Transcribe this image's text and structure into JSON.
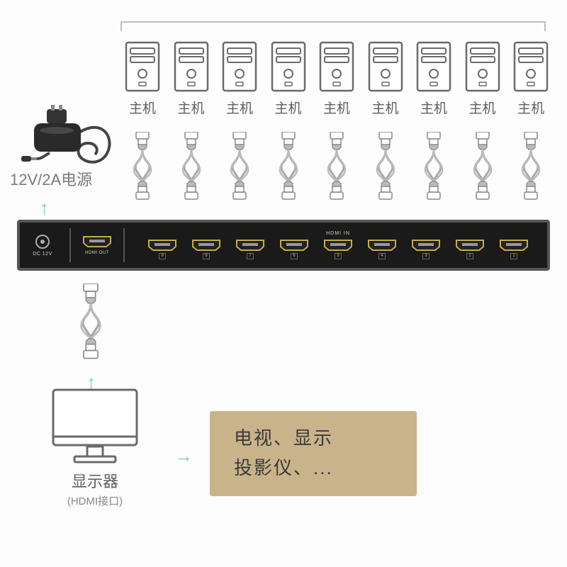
{
  "hosts": {
    "count": 9,
    "label": "主机"
  },
  "power": {
    "label": "12V/2A电源"
  },
  "switch": {
    "dc_label": "DC 12V",
    "hdmi_out_label": "HDMI OUT",
    "hdmi_in_label": "HDMI IN",
    "in_ports": [
      9,
      8,
      7,
      6,
      5,
      4,
      3,
      2,
      1
    ]
  },
  "monitor": {
    "label": "显示器",
    "sublabel": "(HDMI接口)"
  },
  "info": {
    "line1": "电视、显示",
    "line2": "投影仪、..."
  },
  "colors": {
    "arrow": "#7fc6c0",
    "text_gray": "#606060",
    "info_bg": "#c9b38a",
    "switch_bg": "#1a1a1a",
    "port_gold": "#c9a849"
  }
}
